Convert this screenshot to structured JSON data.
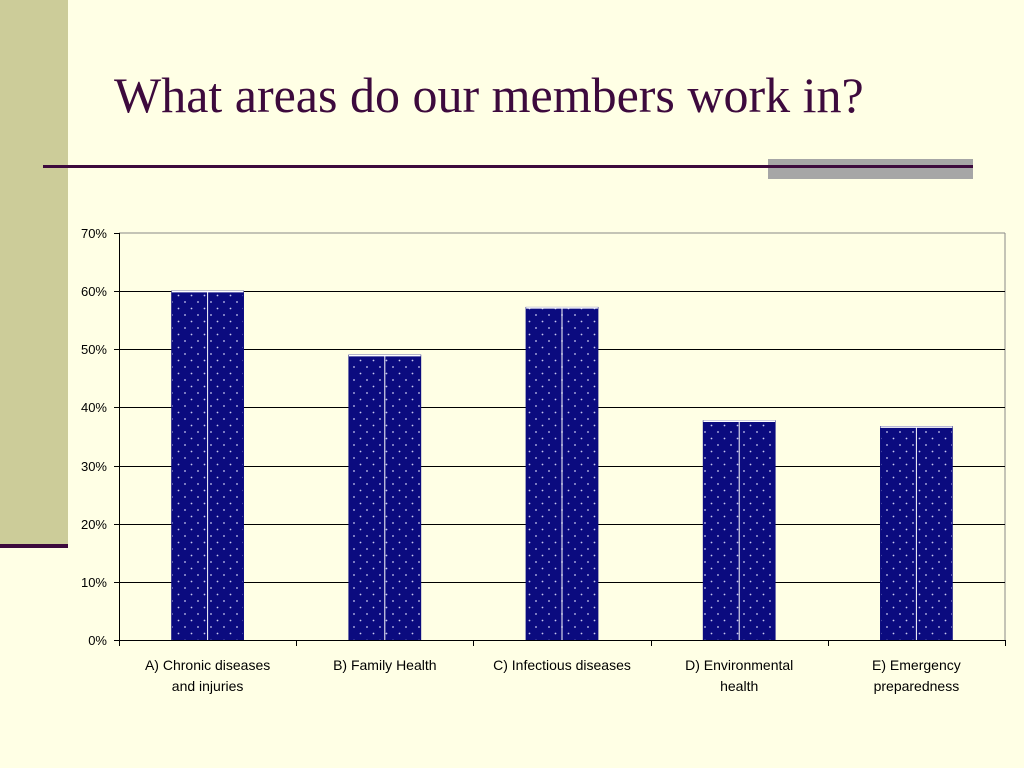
{
  "slide": {
    "title": "What areas do our members work in?"
  },
  "colors": {
    "background": "#FFFFE5",
    "sidebar": "#CCCC99",
    "accent": "#3D0A3D",
    "bar_fill": "#0B0B7F"
  },
  "chart_data": {
    "type": "bar",
    "categories": [
      [
        "A) Chronic diseases",
        "and injuries"
      ],
      [
        "B) Family Health"
      ],
      [
        "C) Infectious diseases"
      ],
      [
        "D) Environmental",
        "health"
      ],
      [
        "E) Emergency",
        "preparedness"
      ]
    ],
    "values": [
      0.6,
      0.49,
      0.572,
      0.377,
      0.367
    ],
    "ylim": [
      0,
      0.7
    ],
    "yticks": [
      "0%",
      "10%",
      "20%",
      "30%",
      "40%",
      "50%",
      "60%",
      "70%"
    ],
    "grid": true,
    "legend": "none"
  }
}
